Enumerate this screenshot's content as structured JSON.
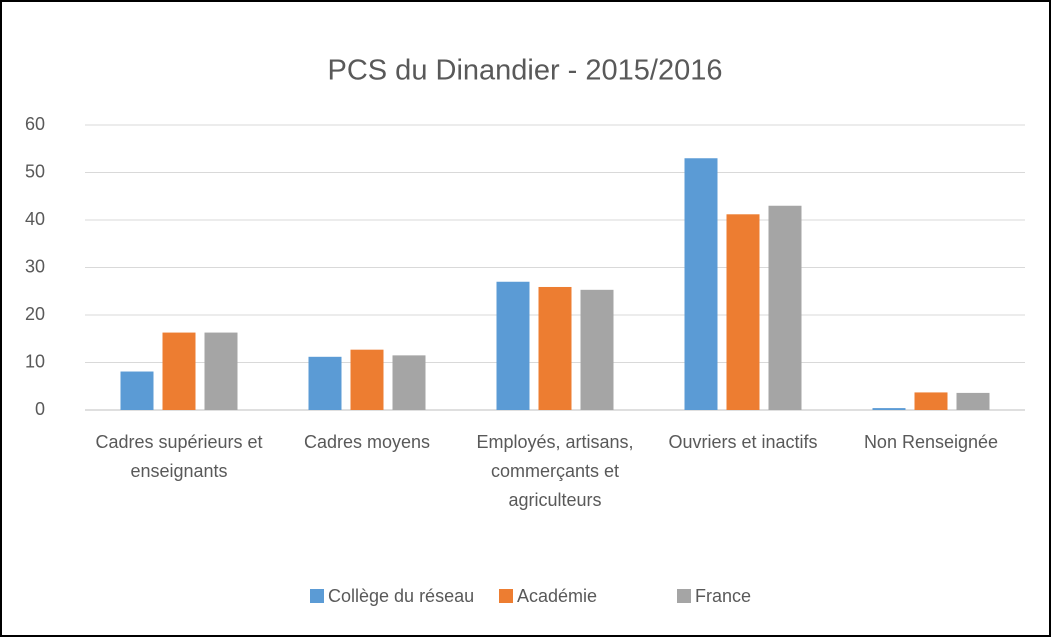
{
  "chart_data": {
    "type": "bar",
    "title": "PCS du Dinandier - 2015/2016",
    "categories": [
      "Cadres supérieurs et enseignants",
      "Cadres moyens",
      "Employés, artisans, commerçants et agriculteurs",
      "Ouvriers et inactifs",
      "Non Renseignée"
    ],
    "series": [
      {
        "name": "Collège du réseau",
        "color": "#5b9bd5",
        "values": [
          8.1,
          11.2,
          27,
          53,
          0.4
        ]
      },
      {
        "name": "Académie",
        "color": "#ed7d31",
        "values": [
          16.3,
          12.7,
          25.9,
          41.2,
          3.7
        ]
      },
      {
        "name": "France",
        "color": "#a5a5a5",
        "values": [
          16.3,
          11.5,
          25.3,
          43,
          3.6
        ]
      }
    ],
    "ylim": [
      0,
      60
    ],
    "yticks": [
      0,
      10,
      20,
      30,
      40,
      50,
      60
    ],
    "grid": true,
    "legend": "bottom"
  }
}
